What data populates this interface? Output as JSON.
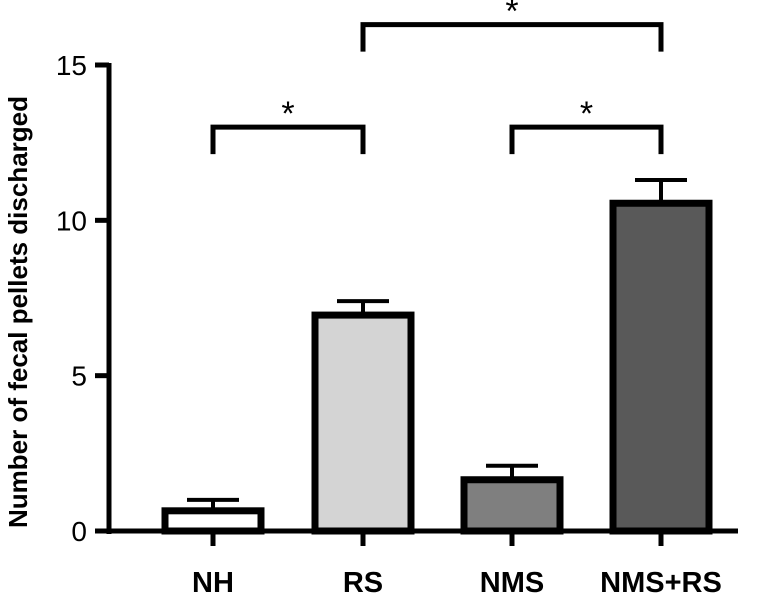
{
  "chart_data": {
    "type": "bar",
    "categories": [
      "NH",
      "RS",
      "NMS",
      "NMS+RS"
    ],
    "values": [
      0.65,
      6.95,
      1.65,
      10.55
    ],
    "errors": [
      0.35,
      0.45,
      0.45,
      0.75
    ],
    "colors": [
      "#ffffff",
      "#d4d4d4",
      "#7f7f7f",
      "#595959"
    ],
    "ylabel": "Number of fecal pellets discharged",
    "ylim": [
      0,
      15
    ],
    "yticks": [
      0,
      5,
      10,
      15
    ],
    "grid": false,
    "significance": [
      {
        "from": "NH",
        "to": "RS",
        "label": "*",
        "level": 13.0
      },
      {
        "from": "NMS",
        "to": "NMS+RS",
        "label": "*",
        "level": 13.0
      },
      {
        "from": "RS",
        "to": "NMS+RS",
        "label": "*",
        "level": 16.3
      }
    ]
  }
}
